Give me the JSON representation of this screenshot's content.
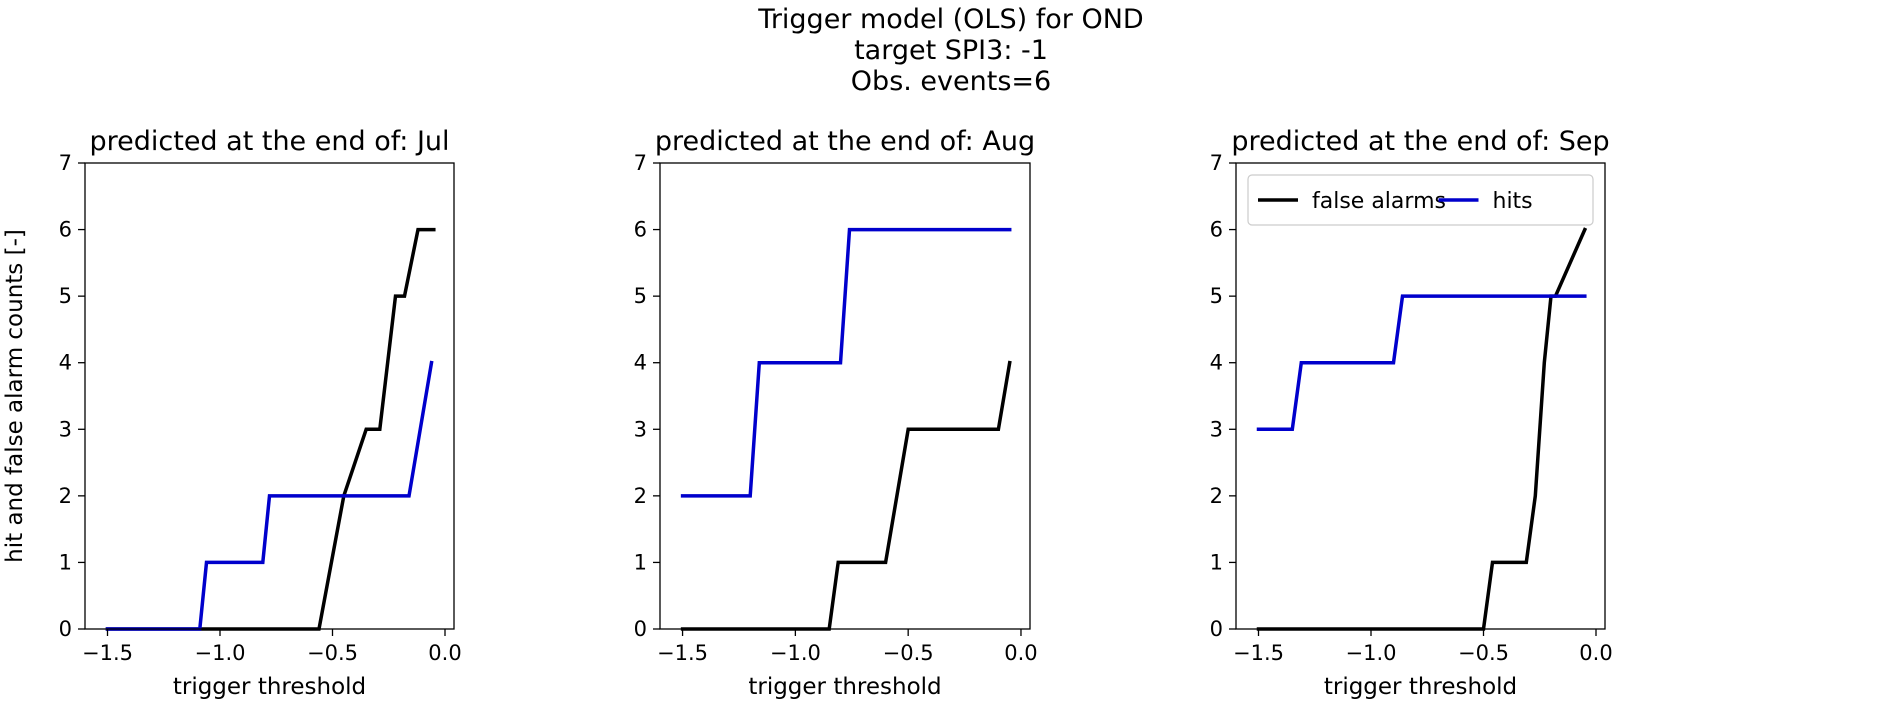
{
  "figure": {
    "title_lines": [
      "Trigger model (OLS) for OND",
      "target SPI3: -1",
      "Obs. events=6"
    ]
  },
  "chart_data": [
    {
      "type": "line",
      "title": "predicted at the end of: Jul",
      "xlabel": "trigger threshold",
      "ylabel": "hit and false alarm counts [-]",
      "xlim": [
        -1.6,
        0.04
      ],
      "ylim": [
        0,
        7
      ],
      "xticks": [
        -1.5,
        -1.0,
        -0.5,
        0.0
      ],
      "xtick_labels": [
        "−1.5",
        "−1.0",
        "−0.5",
        "0.0"
      ],
      "yticks": [
        0,
        1,
        2,
        3,
        4,
        5,
        6,
        7
      ],
      "ytick_labels": [
        "0",
        "1",
        "2",
        "3",
        "4",
        "5",
        "6",
        "7"
      ],
      "grid": false,
      "legend": null,
      "series": [
        {
          "color": "#000000",
          "x": [
            -1.5,
            -0.56,
            -0.45,
            -0.35,
            -0.29,
            -0.22,
            -0.18,
            -0.12,
            -0.05
          ],
          "y": [
            0,
            0,
            2,
            3,
            3,
            5,
            5,
            6,
            6
          ]
        },
        {
          "color": "#0000cc",
          "x": [
            -1.5,
            -1.09,
            -1.06,
            -0.81,
            -0.78,
            -0.16,
            -0.06
          ],
          "y": [
            0,
            0,
            1,
            1,
            2,
            2,
            4
          ]
        }
      ]
    },
    {
      "type": "line",
      "title": "predicted at the end of: Aug",
      "xlabel": "trigger threshold",
      "ylabel": "",
      "xlim": [
        -1.6,
        0.04
      ],
      "ylim": [
        0,
        7
      ],
      "xticks": [
        -1.5,
        -1.0,
        -0.5,
        0.0
      ],
      "xtick_labels": [
        "−1.5",
        "−1.0",
        "−0.5",
        "0.0"
      ],
      "yticks": [
        0,
        1,
        2,
        3,
        4,
        5,
        6,
        7
      ],
      "ytick_labels": [
        "0",
        "1",
        "2",
        "3",
        "4",
        "5",
        "6",
        "7"
      ],
      "grid": false,
      "legend": null,
      "series": [
        {
          "color": "#000000",
          "x": [
            -1.5,
            -0.85,
            -0.81,
            -0.6,
            -0.5,
            -0.46,
            -0.1,
            -0.05
          ],
          "y": [
            0,
            0,
            1,
            1,
            3,
            3,
            3,
            4
          ]
        },
        {
          "color": "#0000cc",
          "x": [
            -1.5,
            -1.2,
            -1.16,
            -0.8,
            -0.76,
            -0.05
          ],
          "y": [
            2,
            2,
            4,
            4,
            6,
            6
          ]
        }
      ]
    },
    {
      "type": "line",
      "title": "predicted at the end of: Sep",
      "xlabel": "trigger threshold",
      "ylabel": "",
      "xlim": [
        -1.6,
        0.04
      ],
      "ylim": [
        0,
        7
      ],
      "xticks": [
        -1.5,
        -1.0,
        -0.5,
        0.0
      ],
      "xtick_labels": [
        "−1.5",
        "−1.0",
        "−0.5",
        "0.0"
      ],
      "yticks": [
        0,
        1,
        2,
        3,
        4,
        5,
        6,
        7
      ],
      "ytick_labels": [
        "0",
        "1",
        "2",
        "3",
        "4",
        "5",
        "6",
        "7"
      ],
      "grid": false,
      "legend": {
        "placement": "top",
        "columns": 2,
        "entries": [
          {
            "label": "false alarms",
            "color": "#000000"
          },
          {
            "label": "hits",
            "color": "#0000cc"
          }
        ]
      },
      "series": [
        {
          "name": "false alarms",
          "color": "#000000",
          "x": [
            -1.5,
            -0.5,
            -0.46,
            -0.31,
            -0.27,
            -0.23,
            -0.2,
            -0.18,
            -0.05
          ],
          "y": [
            0,
            0,
            1,
            1,
            2,
            4,
            5,
            5,
            6
          ]
        },
        {
          "name": "hits",
          "color": "#0000cc",
          "x": [
            -1.5,
            -1.35,
            -1.31,
            -0.9,
            -0.86,
            -0.05
          ],
          "y": [
            3,
            3,
            4,
            4,
            5,
            5
          ]
        }
      ]
    }
  ]
}
